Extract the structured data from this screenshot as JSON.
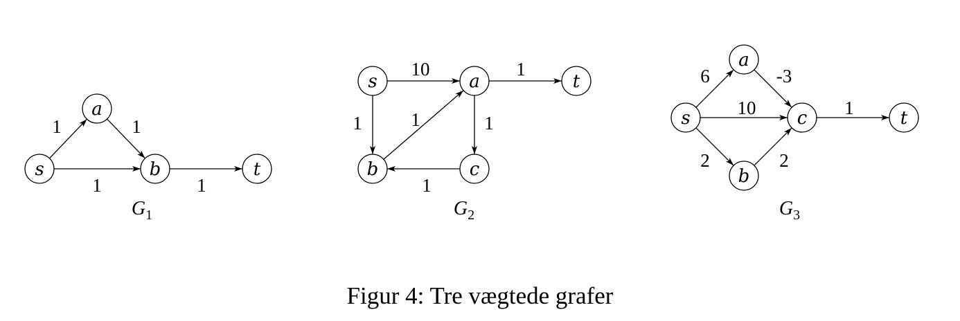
{
  "caption": "Figur 4: Tre vægtede grafer",
  "graphs": [
    {
      "name": "G",
      "subscript": "1",
      "nodes": [
        "s",
        "a",
        "b",
        "t"
      ],
      "edges": [
        {
          "from": "s",
          "to": "a",
          "weight": "1"
        },
        {
          "from": "a",
          "to": "b",
          "weight": "1"
        },
        {
          "from": "s",
          "to": "b",
          "weight": "1"
        },
        {
          "from": "b",
          "to": "t",
          "weight": "1"
        }
      ]
    },
    {
      "name": "G",
      "subscript": "2",
      "nodes": [
        "s",
        "a",
        "t",
        "b",
        "c"
      ],
      "edges": [
        {
          "from": "s",
          "to": "a",
          "weight": "10"
        },
        {
          "from": "a",
          "to": "t",
          "weight": "1"
        },
        {
          "from": "s",
          "to": "b",
          "weight": "1"
        },
        {
          "from": "b",
          "to": "a",
          "weight": "1"
        },
        {
          "from": "a",
          "to": "c",
          "weight": "1"
        },
        {
          "from": "c",
          "to": "b",
          "weight": "1"
        }
      ]
    },
    {
      "name": "G",
      "subscript": "3",
      "nodes": [
        "s",
        "a",
        "c",
        "b",
        "t"
      ],
      "edges": [
        {
          "from": "s",
          "to": "a",
          "weight": "6"
        },
        {
          "from": "a",
          "to": "c",
          "weight": "-3"
        },
        {
          "from": "s",
          "to": "c",
          "weight": "10"
        },
        {
          "from": "s",
          "to": "b",
          "weight": "2"
        },
        {
          "from": "b",
          "to": "c",
          "weight": "2"
        },
        {
          "from": "c",
          "to": "t",
          "weight": "1"
        }
      ]
    }
  ]
}
